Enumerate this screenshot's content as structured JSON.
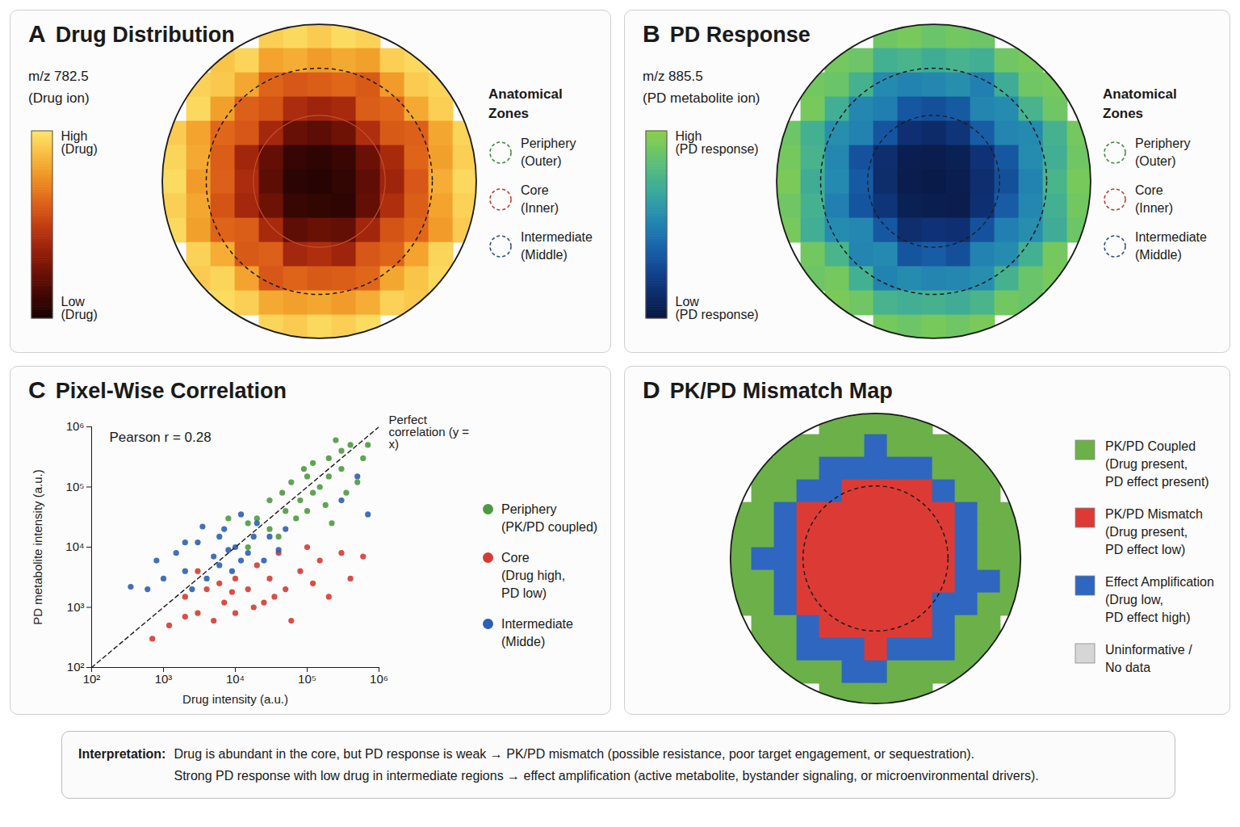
{
  "chart_data": [
    {
      "panel": "A",
      "type": "heatmap",
      "title": "Drug Distribution",
      "subtitle": [
        "m/z 782.5",
        "(Drug ion)"
      ],
      "tick_labels": false,
      "colorbar": {
        "range": [
          0,
          1
        ],
        "ticks": [
          {
            "value": 0,
            "label": "Low (Drug)"
          },
          {
            "value": 1,
            "label": "High (Drug)"
          }
        ]
      },
      "zones_title": "Anatomical Zones",
      "zones": [
        {
          "name": "Periphery (Outer)",
          "color": "#3a8a3a"
        },
        {
          "name": "Core (Inner)",
          "color": "#c0392b"
        },
        {
          "name": "Intermediate (Middle)",
          "color": "#2c4a8c"
        }
      ],
      "cells": [
        [
          null,
          null,
          null,
          null,
          0.93,
          0.96,
          0.92,
          0.97,
          0.94,
          null,
          null,
          null,
          null
        ],
        [
          null,
          null,
          0.9,
          0.95,
          0.8,
          0.83,
          0.78,
          0.82,
          0.79,
          0.93,
          0.96,
          null,
          null
        ],
        [
          null,
          0.94,
          0.91,
          0.81,
          0.62,
          0.58,
          0.6,
          0.63,
          0.59,
          0.78,
          0.92,
          0.95,
          null
        ],
        [
          null,
          0.96,
          0.79,
          0.61,
          0.57,
          0.42,
          0.38,
          0.41,
          0.6,
          0.63,
          0.82,
          0.93,
          null
        ],
        [
          0.92,
          0.8,
          0.63,
          0.58,
          0.4,
          0.23,
          0.2,
          0.25,
          0.43,
          0.59,
          0.61,
          0.81,
          0.95
        ],
        [
          0.95,
          0.82,
          0.6,
          0.39,
          0.22,
          0.09,
          0.07,
          0.1,
          0.24,
          0.41,
          0.62,
          0.79,
          0.93
        ],
        [
          0.97,
          0.78,
          0.61,
          0.42,
          0.2,
          0.06,
          0.05,
          0.08,
          0.21,
          0.38,
          0.58,
          0.83,
          0.96
        ],
        [
          0.93,
          0.81,
          0.57,
          0.4,
          0.25,
          0.1,
          0.08,
          0.07,
          0.22,
          0.43,
          0.6,
          0.8,
          0.94
        ],
        [
          0.96,
          0.79,
          0.62,
          0.6,
          0.41,
          0.21,
          0.24,
          0.22,
          0.39,
          0.57,
          0.63,
          0.78,
          0.92
        ],
        [
          null,
          0.94,
          0.83,
          0.59,
          0.61,
          0.4,
          0.43,
          0.38,
          0.58,
          0.62,
          0.8,
          0.95,
          null
        ],
        [
          null,
          0.92,
          0.95,
          0.8,
          0.58,
          0.62,
          0.59,
          0.6,
          0.63,
          0.81,
          0.9,
          0.96,
          null
        ],
        [
          null,
          null,
          0.97,
          0.93,
          0.82,
          0.79,
          0.81,
          0.78,
          0.83,
          0.94,
          0.91,
          null,
          null
        ],
        [
          null,
          null,
          null,
          null,
          0.95,
          0.92,
          0.96,
          0.93,
          0.97,
          null,
          null,
          null,
          null
        ]
      ]
    },
    {
      "panel": "B",
      "type": "heatmap",
      "title": "PD Response",
      "subtitle": [
        "m/z 885.5",
        "(PD metabolite ion)"
      ],
      "tick_labels": false,
      "colorbar": {
        "range": [
          0,
          1
        ],
        "ticks": [
          {
            "value": 0,
            "label": "Low (PD response)"
          },
          {
            "value": 1,
            "label": "High (PD response)"
          }
        ]
      },
      "zones_title": "Anatomical Zones",
      "zones": [
        {
          "name": "Periphery (Outer)",
          "color": "#3a8a3a"
        },
        {
          "name": "Core (Inner)",
          "color": "#c0392b"
        },
        {
          "name": "Intermediate (Middle)",
          "color": "#2c4a8c"
        }
      ],
      "cells": [
        [
          null,
          null,
          null,
          null,
          0.9,
          0.93,
          0.88,
          0.91,
          0.89,
          null,
          null,
          null,
          null
        ],
        [
          null,
          null,
          0.92,
          0.89,
          0.72,
          0.75,
          0.7,
          0.74,
          0.71,
          0.9,
          0.93,
          null,
          null
        ],
        [
          null,
          0.91,
          0.88,
          0.73,
          0.53,
          0.5,
          0.52,
          0.55,
          0.49,
          0.7,
          0.9,
          0.92,
          null
        ],
        [
          null,
          0.93,
          0.71,
          0.52,
          0.48,
          0.33,
          0.3,
          0.34,
          0.51,
          0.54,
          0.74,
          0.9,
          null
        ],
        [
          0.89,
          0.72,
          0.55,
          0.5,
          0.32,
          0.15,
          0.12,
          0.17,
          0.35,
          0.51,
          0.53,
          0.73,
          0.92
        ],
        [
          0.92,
          0.74,
          0.52,
          0.31,
          0.14,
          0.05,
          0.04,
          0.06,
          0.16,
          0.33,
          0.54,
          0.71,
          0.9
        ],
        [
          0.94,
          0.7,
          0.53,
          0.34,
          0.13,
          0.04,
          0.03,
          0.05,
          0.14,
          0.3,
          0.5,
          0.75,
          0.93
        ],
        [
          0.9,
          0.73,
          0.49,
          0.32,
          0.17,
          0.06,
          0.05,
          0.04,
          0.15,
          0.35,
          0.52,
          0.72,
          0.91
        ],
        [
          0.93,
          0.71,
          0.54,
          0.52,
          0.33,
          0.14,
          0.16,
          0.15,
          0.31,
          0.49,
          0.55,
          0.7,
          0.89
        ],
        [
          null,
          0.91,
          0.75,
          0.51,
          0.53,
          0.32,
          0.35,
          0.3,
          0.5,
          0.54,
          0.72,
          0.92,
          null
        ],
        [
          null,
          0.89,
          0.92,
          0.72,
          0.5,
          0.54,
          0.51,
          0.52,
          0.55,
          0.73,
          0.88,
          0.93,
          null
        ],
        [
          null,
          null,
          0.94,
          0.9,
          0.74,
          0.71,
          0.73,
          0.7,
          0.75,
          0.91,
          0.88,
          null,
          null
        ],
        [
          null,
          null,
          null,
          null,
          0.92,
          0.89,
          0.93,
          0.9,
          0.94,
          null,
          null,
          null,
          null
        ]
      ]
    },
    {
      "panel": "C",
      "type": "scatter",
      "title": "Pixel-Wise Correlation",
      "xlabel": "Drug intensity (a.u.)",
      "ylabel": "PD metabolite intensity (a.u.)",
      "log": true,
      "grid": false,
      "legend": "right",
      "xlim": [
        100,
        1000000
      ],
      "ylim": [
        100,
        1000000
      ],
      "xticks": [
        {
          "value": 100,
          "label": "10²"
        },
        {
          "value": 1000,
          "label": "10³"
        },
        {
          "value": 10000,
          "label": "10⁴"
        },
        {
          "value": 100000,
          "label": "10⁵"
        },
        {
          "value": 1000000,
          "label": "10⁶"
        }
      ],
      "yticks": [
        {
          "value": 100,
          "label": "10²"
        },
        {
          "value": 1000,
          "label": "10³"
        },
        {
          "value": 10000,
          "label": "10⁴"
        },
        {
          "value": 100000,
          "label": "10⁵"
        },
        {
          "value": 1000000,
          "label": "10⁶"
        }
      ],
      "annotation": "Pearson r = 0.28",
      "reference_line": {
        "label": "Perfect correlation (y = x)",
        "x": [
          100,
          1000000
        ],
        "y": [
          100,
          1000000
        ],
        "line_style": "dashed"
      },
      "series": [
        {
          "name": "Periphery (PK/PD coupled)",
          "color": "#4c9a3f",
          "x": [
            30000,
            50000,
            80000,
            100000,
            150000,
            200000,
            300000,
            400000,
            250000,
            60000,
            120000,
            70000,
            180000,
            40000,
            90000,
            350000,
            500000,
            20000,
            15000,
            600000,
            100000,
            300000,
            120000,
            8000,
            200000,
            45000,
            30000,
            15000,
            700000,
            220000
          ],
          "y": [
            20000,
            40000,
            60000,
            150000,
            100000,
            300000,
            200000,
            500000,
            600000,
            120000,
            250000,
            30000,
            50000,
            15000,
            200000,
            80000,
            120000,
            30000,
            25000,
            300000,
            40000,
            400000,
            80000,
            30000,
            150000,
            80000,
            60000,
            10000,
            500000,
            25000
          ]
        },
        {
          "name": "Core (Drug high, PD low)",
          "color": "#d63a32",
          "x": [
            700,
            1200,
            2000,
            3000,
            4000,
            5000,
            7000,
            10000,
            10000,
            15000,
            20000,
            25000,
            30000,
            40000,
            50000,
            60000,
            80000,
            100000,
            120000,
            150000,
            200000,
            300000,
            400000,
            600000,
            3000,
            6000,
            18000,
            9000,
            2000,
            35000
          ],
          "y": [
            300,
            500,
            1500,
            800,
            2000,
            600,
            1200,
            3000,
            800,
            2000,
            5000,
            1200,
            3000,
            8000,
            2000,
            600,
            4000,
            10000,
            2500,
            6000,
            1500,
            8000,
            3000,
            7000,
            4000,
            2500,
            1000,
            1800,
            700,
            1500
          ]
        },
        {
          "name": "Intermediate (Midde)",
          "color": "#2d5fb4",
          "x": [
            800,
            1500,
            2000,
            3000,
            5000,
            7000,
            10000,
            15000,
            20000,
            30000,
            4000,
            6000,
            12000,
            25000,
            3500,
            9000,
            18000,
            50000,
            2500,
            40000,
            600,
            1000,
            6000,
            12000,
            350,
            2000,
            8000,
            300000,
            500000,
            700000
          ],
          "y": [
            6000,
            8000,
            4000,
            12000,
            7000,
            20000,
            10000,
            8000,
            25000,
            15000,
            3000,
            5000,
            35000,
            6000,
            22000,
            4000,
            15000,
            20000,
            2000,
            9000,
            2000,
            3000,
            15000,
            6000,
            2200,
            12000,
            9000,
            60000,
            150000,
            35000
          ]
        }
      ]
    },
    {
      "panel": "D",
      "type": "heatmap",
      "title": "PK/PD Mismatch Map",
      "tick_labels": false,
      "classes": [
        {
          "name": "PK/PD Coupled (Drug present, PD effect present)",
          "color": "#6cb04a"
        },
        {
          "name": "PK/PD Mismatch (Drug present, PD effect low)",
          "color": "#dc3b35"
        },
        {
          "name": "Effect Amplification (Drug low, PD effect high)",
          "color": "#2f66c0"
        },
        {
          "name": "Uninformative / No data",
          "color": "#d6d6d6"
        }
      ],
      "cells": [
        [
          null,
          null,
          null,
          null,
          0,
          0,
          0,
          0,
          0,
          null,
          null,
          null,
          null
        ],
        [
          null,
          null,
          0,
          0,
          0,
          0,
          2,
          0,
          0,
          0,
          0,
          null,
          null
        ],
        [
          null,
          0,
          0,
          0,
          2,
          2,
          2,
          2,
          2,
          0,
          0,
          0,
          null
        ],
        [
          null,
          0,
          0,
          2,
          2,
          1,
          1,
          1,
          1,
          2,
          0,
          0,
          null
        ],
        [
          0,
          0,
          2,
          1,
          1,
          1,
          1,
          1,
          1,
          1,
          2,
          0,
          0
        ],
        [
          0,
          0,
          2,
          1,
          1,
          1,
          1,
          1,
          1,
          1,
          2,
          0,
          0
        ],
        [
          0,
          2,
          2,
          1,
          1,
          1,
          1,
          1,
          1,
          1,
          2,
          0,
          0
        ],
        [
          0,
          0,
          2,
          1,
          1,
          1,
          1,
          1,
          1,
          1,
          2,
          2,
          0
        ],
        [
          0,
          0,
          2,
          1,
          1,
          1,
          1,
          1,
          1,
          2,
          2,
          0,
          0
        ],
        [
          null,
          0,
          0,
          2,
          1,
          1,
          1,
          1,
          1,
          2,
          0,
          0,
          null
        ],
        [
          null,
          0,
          0,
          2,
          2,
          2,
          1,
          2,
          2,
          2,
          0,
          0,
          null
        ],
        [
          null,
          null,
          0,
          0,
          0,
          2,
          2,
          0,
          0,
          0,
          0,
          null,
          null
        ],
        [
          null,
          null,
          null,
          null,
          0,
          0,
          0,
          0,
          0,
          null,
          null,
          null,
          null
        ]
      ]
    }
  ],
  "interpretation": {
    "label": "Interpretation:",
    "lines": [
      "Drug is abundant in the core, but PD response is weak → PK/PD mismatch (possible resistance, poor target engagement, or sequestration).",
      "Strong PD response with low drug in intermediate regions → effect amplification (active metabolite, bystander signaling, or microenvironmental drivers)."
    ]
  }
}
